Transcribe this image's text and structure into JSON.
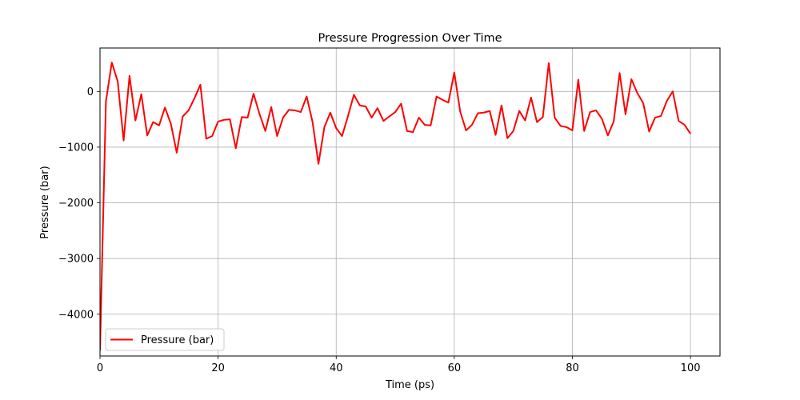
{
  "chart_data": {
    "type": "line",
    "title": "Pressure Progression Over Time",
    "xlabel": "Time (ps)",
    "ylabel": "Pressure (bar)",
    "xlim": [
      0,
      105
    ],
    "ylim": [
      -4750,
      780
    ],
    "xticks": [
      0,
      20,
      40,
      60,
      80,
      100
    ],
    "xtick_labels": [
      "0",
      "20",
      "40",
      "60",
      "80",
      "100"
    ],
    "yticks": [
      -4000,
      -3000,
      -2000,
      -1000,
      0
    ],
    "ytick_labels": [
      "−4000",
      "−3000",
      "−2000",
      "−1000",
      "0"
    ],
    "grid": true,
    "legend": "lower-left",
    "series": [
      {
        "name": "Pressure (bar)",
        "color": "#ff0000",
        "x": [
          0,
          1,
          2,
          3,
          4,
          5,
          6,
          7,
          8,
          9,
          10,
          11,
          12,
          13,
          14,
          15,
          16,
          17,
          18,
          19,
          20,
          21,
          22,
          23,
          24,
          25,
          26,
          27,
          28,
          29,
          30,
          31,
          32,
          33,
          34,
          35,
          36,
          37,
          38,
          39,
          40,
          41,
          42,
          43,
          44,
          45,
          46,
          47,
          48,
          49,
          50,
          51,
          52,
          53,
          54,
          55,
          56,
          57,
          58,
          59,
          60,
          61,
          62,
          63,
          64,
          65,
          66,
          67,
          68,
          69,
          70,
          71,
          72,
          73,
          74,
          75,
          76,
          77,
          78,
          79,
          80,
          81,
          82,
          83,
          84,
          85,
          86,
          87,
          88,
          89,
          90,
          91,
          92,
          93,
          94,
          95,
          96,
          97,
          98,
          99,
          100
        ],
        "values": [
          -4650,
          -180,
          520,
          180,
          -880,
          280,
          -520,
          -50,
          -790,
          -550,
          -610,
          -290,
          -580,
          -1100,
          -450,
          -340,
          -120,
          120,
          -850,
          -800,
          -540,
          -510,
          -500,
          -1020,
          -460,
          -470,
          -40,
          -400,
          -710,
          -280,
          -800,
          -470,
          -330,
          -340,
          -370,
          -90,
          -550,
          -1300,
          -640,
          -380,
          -660,
          -800,
          -440,
          -60,
          -250,
          -270,
          -470,
          -300,
          -530,
          -450,
          -370,
          -220,
          -710,
          -730,
          -470,
          -600,
          -610,
          -90,
          -150,
          -200,
          340,
          -360,
          -700,
          -600,
          -390,
          -380,
          -350,
          -780,
          -250,
          -840,
          -710,
          -350,
          -520,
          -110,
          -550,
          -460,
          510,
          -470,
          -620,
          -640,
          -700,
          210,
          -710,
          -370,
          -340,
          -490,
          -790,
          -540,
          330,
          -410,
          220,
          -30,
          -210,
          -720,
          -470,
          -440,
          -170,
          0,
          -530,
          -600,
          -760
        ]
      }
    ]
  }
}
